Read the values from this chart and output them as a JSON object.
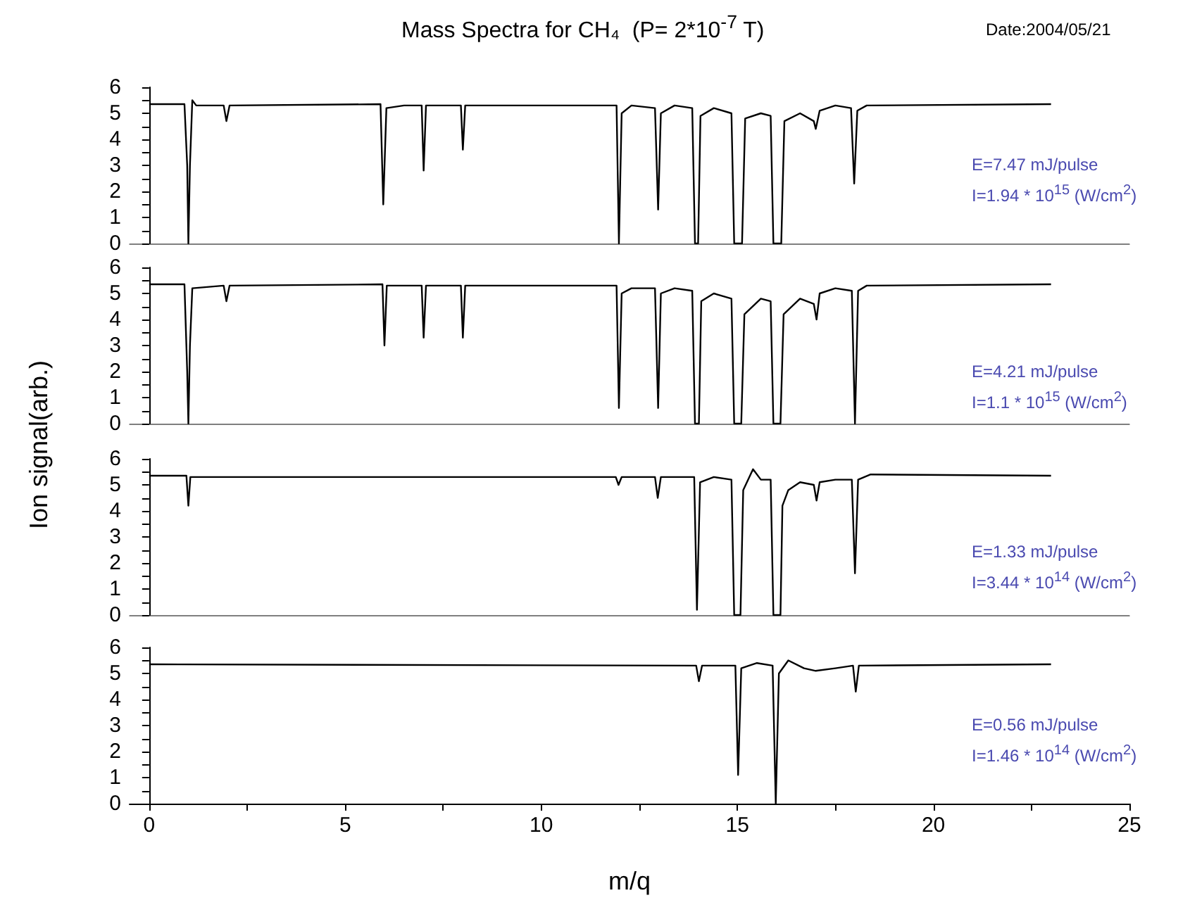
{
  "chart_data": [
    {
      "type": "line",
      "title": "Mass Spectra for CH₄  (P= 2*10$^{-7}$ T)",
      "ylabel": "Ion signal(arb.)",
      "annotations": [
        "Date:2004/05/21",
        "E=7.47 mJ/pulse",
        "I=1.94 * 10$^{15}$ (W/cm$^{2}$)"
      ],
      "marker": "none",
      "tick_labels": "y",
      "xlim": [
        -0.5,
        25
      ],
      "ylim": [
        0,
        6
      ],
      "yticks": [
        0,
        {
          "value": 0.5,
          "label": null
        },
        1,
        {
          "value": 1.5,
          "label": null
        },
        2,
        {
          "value": 2.5,
          "label": null
        },
        3,
        {
          "value": 3.5,
          "label": null
        },
        4,
        {
          "value": 4.5,
          "label": null
        },
        5,
        {
          "value": 5.5,
          "label": null
        },
        6
      ],
      "series": [
        {
          "color": "#000000",
          "x": [
            0,
            0.9,
            0.97,
            1.0,
            1.04,
            1.1,
            1.2,
            1.9,
            1.97,
            2.05,
            5.9,
            5.97,
            6.05,
            6.5,
            6.95,
            7.0,
            7.06,
            7.95,
            8.0,
            8.06,
            11.92,
            11.98,
            12.05,
            12.3,
            12.9,
            12.98,
            13.05,
            13.4,
            13.85,
            13.92,
            14.0,
            14.06,
            14.4,
            14.85,
            14.92,
            15.12,
            15.2,
            15.6,
            15.85,
            15.92,
            16.12,
            16.2,
            16.6,
            16.95,
            17.0,
            17.1,
            17.5,
            17.9,
            17.98,
            18.06,
            18.3,
            23
          ],
          "values": [
            5.35,
            5.35,
            3,
            0,
            3,
            5.5,
            5.3,
            5.3,
            4.7,
            5.3,
            5.35,
            1.5,
            5.2,
            5.3,
            5.3,
            2.8,
            5.3,
            5.3,
            3.6,
            5.3,
            5.3,
            0,
            5.0,
            5.3,
            5.2,
            1.3,
            5.0,
            5.3,
            5.2,
            0,
            0,
            4.9,
            5.2,
            5.0,
            0,
            0,
            4.8,
            5.0,
            4.9,
            0,
            0,
            4.7,
            5.0,
            4.7,
            4.4,
            5.1,
            5.3,
            5.2,
            2.3,
            5.1,
            5.3,
            5.35
          ]
        }
      ]
    },
    {
      "type": "line",
      "annotations": [
        "E=4.21 mJ/pulse",
        "I=1.1 * 10$^{15}$ (W/cm$^{2}$)"
      ],
      "marker": "none",
      "tick_labels": "y",
      "xlim": [
        -0.5,
        25
      ],
      "ylim": [
        0,
        6
      ],
      "yticks": [
        0,
        {
          "value": 0.5,
          "label": null
        },
        1,
        {
          "value": 1.5,
          "label": null
        },
        2,
        {
          "value": 2.5,
          "label": null
        },
        3,
        {
          "value": 3.5,
          "label": null
        },
        4,
        {
          "value": 4.5,
          "label": null
        },
        5,
        {
          "value": 5.5,
          "label": null
        },
        6
      ],
      "series": [
        {
          "color": "#000000",
          "x": [
            0,
            0.9,
            0.97,
            1.0,
            1.04,
            1.1,
            1.9,
            1.97,
            2.05,
            5.95,
            6.0,
            6.06,
            6.95,
            7.0,
            7.06,
            7.95,
            8.0,
            8.06,
            11.92,
            11.98,
            12.05,
            12.3,
            12.9,
            12.98,
            13.05,
            13.4,
            13.85,
            13.92,
            14.02,
            14.08,
            14.4,
            14.85,
            14.92,
            15.1,
            15.18,
            15.6,
            15.85,
            15.92,
            16.1,
            16.18,
            16.6,
            16.95,
            17.02,
            17.1,
            17.5,
            17.92,
            18.0,
            18.08,
            18.3,
            23
          ],
          "values": [
            5.35,
            5.35,
            2,
            0,
            3,
            5.2,
            5.3,
            4.7,
            5.3,
            5.35,
            3.0,
            5.3,
            5.3,
            3.3,
            5.3,
            5.3,
            3.3,
            5.3,
            5.3,
            0.6,
            5.0,
            5.2,
            5.2,
            0.6,
            5.0,
            5.2,
            5.1,
            0,
            0,
            4.7,
            5.0,
            4.8,
            0,
            0,
            4.2,
            4.8,
            4.7,
            0,
            0,
            4.2,
            4.8,
            4.6,
            4.0,
            5.0,
            5.2,
            5.1,
            0,
            5.1,
            5.3,
            5.35
          ]
        }
      ]
    },
    {
      "type": "line",
      "annotations": [
        "E=1.33 mJ/pulse",
        "I=3.44 * 10$^{14}$ (W/cm$^{2}$)"
      ],
      "marker": "none",
      "tick_labels": "y",
      "xlim": [
        -0.5,
        25
      ],
      "ylim": [
        0,
        6
      ],
      "yticks": [
        0,
        {
          "value": 0.5,
          "label": null
        },
        1,
        {
          "value": 1.5,
          "label": null
        },
        2,
        {
          "value": 2.5,
          "label": null
        },
        3,
        {
          "value": 3.5,
          "label": null
        },
        4,
        {
          "value": 4.5,
          "label": null
        },
        5,
        {
          "value": 5.5,
          "label": null
        },
        6
      ],
      "series": [
        {
          "color": "#000000",
          "x": [
            0,
            0.95,
            1.0,
            1.05,
            11.9,
            11.97,
            12.05,
            12.9,
            12.97,
            13.05,
            13.9,
            13.97,
            14.05,
            14.4,
            14.85,
            14.92,
            15.08,
            15.15,
            15.4,
            15.6,
            15.85,
            15.92,
            16.1,
            16.15,
            16.3,
            16.6,
            16.95,
            17.02,
            17.1,
            17.5,
            17.92,
            18.0,
            18.08,
            18.4,
            23
          ],
          "values": [
            5.35,
            5.35,
            4.2,
            5.3,
            5.3,
            5.0,
            5.3,
            5.3,
            4.5,
            5.3,
            5.3,
            0.2,
            5.1,
            5.3,
            5.2,
            0,
            0,
            4.8,
            5.6,
            5.2,
            5.2,
            0,
            0,
            4.2,
            4.8,
            5.1,
            5.0,
            4.4,
            5.1,
            5.2,
            5.2,
            1.6,
            5.2,
            5.4,
            5.35
          ]
        }
      ]
    },
    {
      "type": "line",
      "xlabel": "m/q",
      "annotations": [
        "E=0.56 mJ/pulse",
        "I=1.46 * 10$^{14}$ (W/cm$^{2}$)"
      ],
      "marker": "none",
      "xlim": [
        -0.5,
        25
      ],
      "ylim": [
        0,
        6
      ],
      "xticks": [
        0,
        {
          "value": 2.5,
          "label": null
        },
        5,
        {
          "value": 7.5,
          "label": null
        },
        10,
        {
          "value": 12.5,
          "label": null
        },
        15,
        {
          "value": 17.5,
          "label": null
        },
        20,
        {
          "value": 22.5,
          "label": null
        },
        25
      ],
      "yticks": [
        0,
        {
          "value": 0.5,
          "label": null
        },
        1,
        {
          "value": 1.5,
          "label": null
        },
        2,
        {
          "value": 2.5,
          "label": null
        },
        3,
        {
          "value": 3.5,
          "label": null
        },
        4,
        {
          "value": 4.5,
          "label": null
        },
        5,
        {
          "value": 5.5,
          "label": null
        },
        6
      ],
      "series": [
        {
          "color": "#000000",
          "x": [
            0,
            13.95,
            14.02,
            14.1,
            14.95,
            15.02,
            15.1,
            15.5,
            15.9,
            15.98,
            16.06,
            16.3,
            16.7,
            17.0,
            17.5,
            17.95,
            18.02,
            18.1,
            23
          ],
          "values": [
            5.35,
            5.3,
            4.7,
            5.3,
            5.3,
            1.1,
            5.2,
            5.4,
            5.3,
            0,
            5.0,
            5.5,
            5.2,
            5.1,
            5.2,
            5.3,
            4.3,
            5.3,
            5.35
          ]
        }
      ]
    }
  ]
}
